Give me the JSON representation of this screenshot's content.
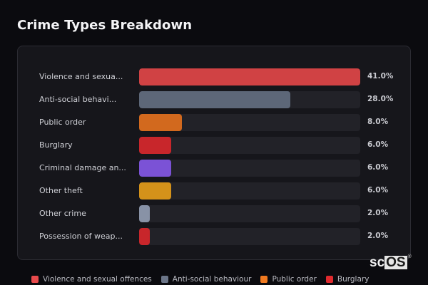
{
  "page": {
    "title": "Crime Types Breakdown"
  },
  "chart_data": {
    "type": "bar",
    "orientation": "horizontal",
    "title": "Crime Types Breakdown",
    "xlim": [
      0,
      41
    ],
    "categories": [
      "Violence and sexual offences",
      "Anti-social behaviour",
      "Public order",
      "Burglary",
      "Criminal damage and arson",
      "Other theft",
      "Other crime",
      "Possession of weapons"
    ],
    "display_labels": [
      "Violence and sexua...",
      "Anti-social behavi...",
      "Public order",
      "Burglary",
      "Criminal damage an...",
      "Other theft",
      "Other crime",
      "Possession of weap..."
    ],
    "values": [
      41.0,
      28.0,
      8.0,
      6.0,
      6.0,
      6.0,
      2.0,
      2.0
    ],
    "value_labels": [
      "41.0%",
      "28.0%",
      "8.0%",
      "6.0%",
      "6.0%",
      "6.0%",
      "2.0%",
      "2.0%"
    ],
    "colors": [
      "#d04244",
      "#5d6778",
      "#d2691e",
      "#c8262b",
      "#7b52d6",
      "#d4921a",
      "#8892a6",
      "#c8262b"
    ],
    "legend": [
      {
        "label": "Violence and sexual offences",
        "color": "#e84a4c"
      },
      {
        "label": "Anti-social behaviour",
        "color": "#6b7588"
      },
      {
        "label": "Public order",
        "color": "#f07a20"
      },
      {
        "label": "Burglary",
        "color": "#e02a2e"
      }
    ]
  },
  "branding": {
    "logo_text_a": "sc",
    "logo_text_b": "OS",
    "logo_mark": "®"
  }
}
